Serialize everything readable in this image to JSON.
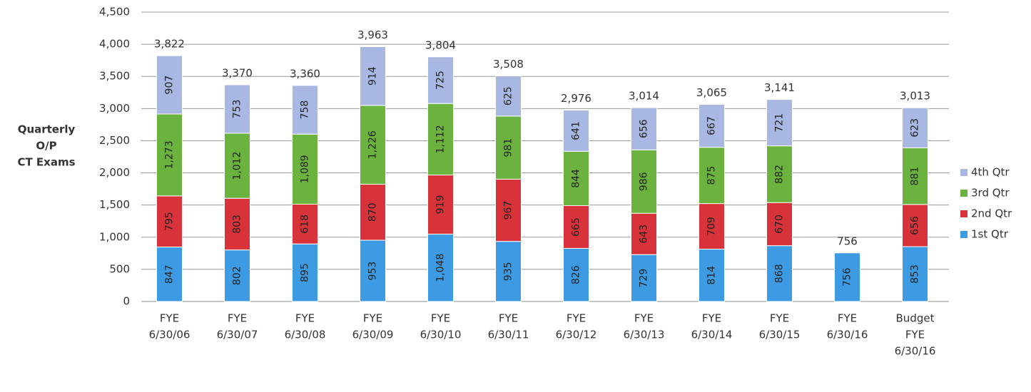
{
  "chart_data": {
    "type": "stacked_bar",
    "y_label": [
      "Quarterly",
      "O/P",
      "CT Exams"
    ],
    "categories": [
      [
        "FYE",
        "6/30/06"
      ],
      [
        "FYE",
        "6/30/07"
      ],
      [
        "FYE",
        "6/30/08"
      ],
      [
        "FYE",
        "6/30/09"
      ],
      [
        "FYE",
        "6/30/10"
      ],
      [
        "FYE",
        "6/30/11"
      ],
      [
        "FYE",
        "6/30/12"
      ],
      [
        "FYE",
        "6/30/13"
      ],
      [
        "FYE",
        "6/30/14"
      ],
      [
        "FYE",
        "6/30/15"
      ],
      [
        "FYE",
        "6/30/16"
      ],
      [
        "Budget",
        "FYE",
        "6/30/16"
      ]
    ],
    "series": [
      {
        "name": "1st Qtr",
        "color": "#3d9be3",
        "values": [
          847,
          802,
          895,
          953,
          1048,
          935,
          826,
          729,
          814,
          868,
          756,
          853
        ],
        "value_labels": [
          "847",
          "802",
          "895",
          "953",
          "1,048",
          "935",
          "826",
          "729",
          "814",
          "868",
          "756",
          "853"
        ]
      },
      {
        "name": "2nd Qtr",
        "color": "#d8323a",
        "values": [
          795,
          803,
          618,
          870,
          919,
          967,
          665,
          643,
          709,
          670,
          null,
          656
        ],
        "value_labels": [
          "795",
          "803",
          "618",
          "870",
          "919",
          "967",
          "665",
          "643",
          "709",
          "670",
          null,
          "656"
        ]
      },
      {
        "name": "3rd Qtr",
        "color": "#6bb33e",
        "values": [
          1273,
          1012,
          1089,
          1226,
          1112,
          981,
          844,
          986,
          875,
          882,
          null,
          881
        ],
        "value_labels": [
          "1,273",
          "1,012",
          "1,089",
          "1,226",
          "1,112",
          "981",
          "844",
          "986",
          "875",
          "882",
          null,
          "881"
        ]
      },
      {
        "name": "4th Qtr",
        "color": "#a8b8e2",
        "values": [
          907,
          753,
          758,
          914,
          725,
          625,
          641,
          656,
          667,
          721,
          null,
          623
        ],
        "value_labels": [
          "907",
          "753",
          "758",
          "914",
          "725",
          "625",
          "641",
          "656",
          "667",
          "721",
          null,
          "623"
        ]
      }
    ],
    "totals": {
      "values": [
        3822,
        3370,
        3360,
        3963,
        3804,
        3508,
        2976,
        3014,
        3065,
        3141,
        756,
        3013
      ],
      "value_labels": [
        "3,822",
        "3,370",
        "3,360",
        "3,963",
        "3,804",
        "3,508",
        "2,976",
        "3,014",
        "3,065",
        "3,141",
        "756",
        "3,013"
      ]
    },
    "ylim": [
      0,
      4500
    ],
    "yticks": [
      0,
      500,
      {
        "value": 1000,
        "label": "1,000"
      },
      {
        "value": 1500,
        "label": "1,500"
      },
      {
        "value": 2000,
        "label": "2,000"
      },
      {
        "value": 2500,
        "label": "2,500"
      },
      {
        "value": 3000,
        "label": "3,000"
      },
      {
        "value": 3500,
        "label": "3,500"
      },
      {
        "value": 4000,
        "label": "4,000"
      },
      {
        "value": 4500,
        "label": "4,500"
      }
    ],
    "grid": true,
    "legend": "right"
  }
}
